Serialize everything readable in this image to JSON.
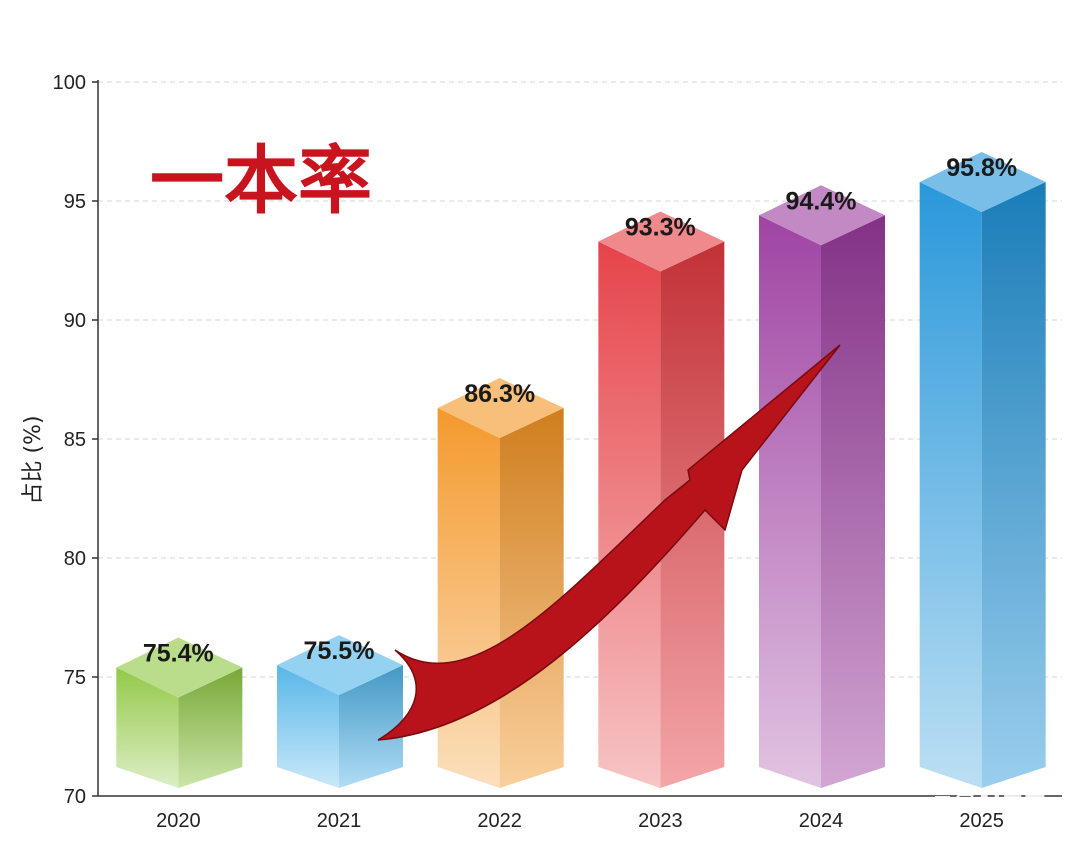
{
  "chart_data": {
    "type": "bar",
    "title": "一本率",
    "xlabel": "",
    "ylabel": "占比 (%)",
    "ylim": [
      70,
      100
    ],
    "yticks": [
      70,
      75,
      80,
      85,
      90,
      95,
      100
    ],
    "categories": [
      "2020",
      "2021",
      "2022",
      "2023",
      "2024",
      "2025"
    ],
    "values": [
      75.4,
      75.5,
      86.3,
      93.3,
      94.4,
      95.8
    ],
    "data_labels": [
      "75.4%",
      "75.5%",
      "86.3%",
      "93.3%",
      "94.4%",
      "95.8%"
    ],
    "grid": true,
    "legend": "none",
    "colors": [
      "#8cc63f",
      "#4fb3e8",
      "#f39422",
      "#e43a3f",
      "#9a3a9e",
      "#1e93d8"
    ]
  },
  "watermark": "豆包AI生成"
}
